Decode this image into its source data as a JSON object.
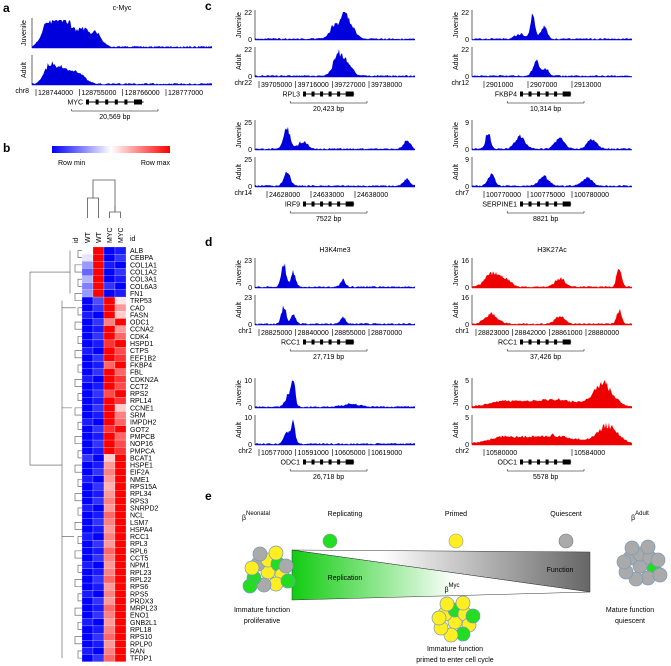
{
  "panel_letters": {
    "a": "a",
    "b": "b",
    "c": "c",
    "d": "d",
    "e": "e"
  },
  "blocks": [
    {
      "title": "c-Myc",
      "color": "#0000dd",
      "rows": [
        {
          "label": "Juvenile"
        },
        {
          "label": "Adult"
        }
      ],
      "chr": "chr8",
      "coords": [
        "128744000",
        "128755000",
        "128766000",
        "128777000"
      ],
      "gene": "MYC",
      "size": "20,569 bp"
    },
    {
      "color": "#0000dd",
      "rows": [
        {
          "label": "Juvenile",
          "max": "22",
          "min": "0"
        },
        {
          "label": "Adult",
          "max": "22",
          "min": "0"
        }
      ],
      "chr": "chr22",
      "coords": [
        "39705000",
        "39716000",
        "39727000",
        "39738000"
      ],
      "gene": "RPL3",
      "size": "20,423 bp"
    },
    {
      "color": "#0000dd",
      "rows": [
        {
          "label": "Juvenile",
          "max": "22",
          "min": "0"
        },
        {
          "label": "Adult",
          "max": "22",
          "min": "0"
        }
      ],
      "chr": "chr12",
      "coords": [
        "2901000",
        "2907000",
        "2913000"
      ],
      "gene": "FKBP4",
      "size": "10,314 bp"
    },
    {
      "color": "#0000dd",
      "rows": [
        {
          "label": "Juvenile",
          "max": "25",
          "min": "0"
        },
        {
          "label": "Adult",
          "max": "25",
          "min": "0"
        }
      ],
      "chr": "chr14",
      "coords": [
        "24628000",
        "24633000",
        "24638000"
      ],
      "gene": "IRF9",
      "size": "7522 bp"
    },
    {
      "color": "#0000dd",
      "rows": [
        {
          "label": "Juvenile",
          "max": "9",
          "min": "0"
        },
        {
          "label": "Adult",
          "max": "9",
          "min": "0"
        }
      ],
      "chr": "chr7",
      "coords": [
        "100770000",
        "100775000",
        "100780000"
      ],
      "gene": "SERPINE1",
      "size": "8821 bp"
    },
    {
      "title": "H3K4me3",
      "color": "#0000dd",
      "rows": [
        {
          "label": "Juvenile",
          "max": "23",
          "min": "0"
        },
        {
          "label": "Adult",
          "max": "23",
          "min": "0"
        }
      ],
      "chr": "chr1",
      "coords": [
        "28825000",
        "28840000",
        "28855000",
        "28870000"
      ],
      "gene": "RCC1",
      "size": "27,719 bp"
    },
    {
      "title": "H3K27Ac",
      "color": "#ee0000",
      "rows": [
        {
          "label": "Juvenile",
          "max": "16",
          "min": "0"
        },
        {
          "label": "Adult",
          "max": "16",
          "min": "0"
        }
      ],
      "chr": "chr1",
      "coords": [
        "28823000",
        "28842000",
        "28861000",
        "28880000"
      ],
      "gene": "RCC1",
      "size": "37,426 bp"
    },
    {
      "color": "#0000dd",
      "rows": [
        {
          "label": "Juvenile",
          "max": "10",
          "min": "0"
        },
        {
          "label": "Adult",
          "max": "10",
          "min": "0"
        }
      ],
      "chr": "chr2",
      "coords": [
        "10577000",
        "10591000",
        "10605000",
        "10619000"
      ],
      "gene": "ODC1",
      "size": "26,718 bp"
    },
    {
      "color": "#ee0000",
      "rows": [
        {
          "label": "Juvenile",
          "max": "5",
          "min": "0"
        },
        {
          "label": "Adult",
          "max": "5",
          "min": "0"
        }
      ],
      "chr": "chr2",
      "coords": [
        "10580000",
        "10584000"
      ],
      "gene": "ODC1",
      "size": "5578 bp"
    }
  ],
  "heatmap": {
    "legend_min": "Row min",
    "legend_max": "Row max",
    "low_color": "#0000ff",
    "mid_color": "#ffffff",
    "high_color": "#ff0000",
    "id_left": "id",
    "id_right": "id",
    "columns": [
      "WT",
      "WT",
      "MYC",
      "MYC"
    ],
    "genes": [
      {
        "name": "ALB",
        "color": "#000000",
        "values": [
          0.5,
          1,
          0,
          0.05
        ]
      },
      {
        "name": "CEBPA",
        "color": "#000000",
        "values": [
          0.45,
          1,
          0,
          0.1
        ]
      },
      {
        "name": "COL1A1",
        "color": "#000000",
        "values": [
          0.3,
          1,
          0.05,
          0
        ]
      },
      {
        "name": "COL1A2",
        "color": "#cc33cc",
        "values": [
          0.2,
          1,
          0,
          0.1
        ]
      },
      {
        "name": "COL3A1",
        "color": "#cc33cc",
        "values": [
          0.35,
          1,
          0,
          0.05
        ]
      },
      {
        "name": "COL6A3",
        "color": "#000000",
        "values": [
          0.25,
          1,
          0.1,
          0
        ]
      },
      {
        "name": "FN1",
        "color": "#000000",
        "values": [
          0.3,
          1,
          0,
          0.05
        ]
      },
      {
        "name": "TRP53",
        "color": "#cc33cc",
        "values": [
          0,
          0.15,
          1,
          0.55
        ]
      },
      {
        "name": "CAD",
        "color": "#000000",
        "values": [
          0,
          0.1,
          1,
          0.7
        ]
      },
      {
        "name": "FASN",
        "color": "#000000",
        "values": [
          0.05,
          0,
          1,
          0.6
        ]
      },
      {
        "name": "ODC1",
        "color": "#cc33cc",
        "values": [
          0,
          0.1,
          0.75,
          1
        ]
      },
      {
        "name": "CCNA2",
        "color": "#cc33cc",
        "values": [
          0,
          0.05,
          1,
          0.7
        ]
      },
      {
        "name": "CDK4",
        "color": "#000000",
        "values": [
          0,
          0.1,
          1,
          0.8
        ]
      },
      {
        "name": "HSPD1",
        "color": "#000000",
        "values": [
          0,
          0.05,
          0.9,
          1
        ]
      },
      {
        "name": "CTPS",
        "color": "#000000",
        "values": [
          0.05,
          0,
          1,
          0.85
        ]
      },
      {
        "name": "EEF1B2",
        "color": "#000000",
        "values": [
          0,
          0.1,
          1,
          0.9
        ]
      },
      {
        "name": "FKBP4",
        "color": "#cc33cc",
        "values": [
          0,
          0.05,
          0.8,
          1
        ]
      },
      {
        "name": "FBL",
        "color": "#000000",
        "values": [
          0,
          0.1,
          1,
          0.8
        ]
      },
      {
        "name": "CDKN2A",
        "color": "#000000",
        "values": [
          0.05,
          0,
          1,
          0.9
        ]
      },
      {
        "name": "CCT2",
        "color": "#000000",
        "values": [
          0,
          0.05,
          1,
          0.85
        ]
      },
      {
        "name": "RPS2",
        "color": "#cc33cc",
        "values": [
          0,
          0.1,
          0.85,
          1
        ]
      },
      {
        "name": "RPL14",
        "color": "#000000",
        "values": [
          0,
          0.05,
          1,
          0.9
        ]
      },
      {
        "name": "CCNE1",
        "color": "#cc33cc",
        "values": [
          0,
          0.1,
          1,
          0.6
        ]
      },
      {
        "name": "SRM",
        "color": "#000000",
        "values": [
          0,
          0.05,
          1,
          0.75
        ]
      },
      {
        "name": "IMPDH2",
        "color": "#000000",
        "values": [
          0.05,
          0,
          1,
          0.8
        ]
      },
      {
        "name": "GOT2",
        "color": "#000000",
        "values": [
          0,
          0.1,
          0.9,
          1
        ]
      },
      {
        "name": "PMPCB",
        "color": "#cc33cc",
        "values": [
          0,
          0.05,
          1,
          0.8
        ]
      },
      {
        "name": "NOP16",
        "color": "#000000",
        "values": [
          0,
          0.1,
          1,
          0.85
        ]
      },
      {
        "name": "PMPCA",
        "color": "#cc33cc",
        "values": [
          0,
          0.05,
          1,
          0.9
        ]
      },
      {
        "name": "BCAT1",
        "color": "#000000",
        "values": [
          0.1,
          0,
          0.6,
          1
        ]
      },
      {
        "name": "HSPE1",
        "color": "#cc33cc",
        "values": [
          0,
          0.05,
          0.7,
          1
        ]
      },
      {
        "name": "EIF2A",
        "color": "#cc33cc",
        "values": [
          0,
          0.1,
          0.75,
          1
        ]
      },
      {
        "name": "NME1",
        "color": "#cc33cc",
        "values": [
          0.05,
          0,
          0.7,
          1
        ]
      },
      {
        "name": "RPS15A",
        "color": "#cc33cc",
        "values": [
          0,
          0.1,
          0.65,
          1
        ]
      },
      {
        "name": "RPL34",
        "color": "#cc33cc",
        "values": [
          0,
          0.05,
          0.7,
          1
        ]
      },
      {
        "name": "RPS3",
        "color": "#cc33cc",
        "values": [
          0,
          0.1,
          0.75,
          1
        ]
      },
      {
        "name": "SNRPD2",
        "color": "#cc33cc",
        "values": [
          0.05,
          0,
          0.7,
          1
        ]
      },
      {
        "name": "NCL",
        "color": "#000000",
        "values": [
          0,
          0.05,
          0.8,
          1
        ]
      },
      {
        "name": "LSM7",
        "color": "#cc33cc",
        "values": [
          0,
          0.1,
          0.75,
          1
        ]
      },
      {
        "name": "HSPA4",
        "color": "#cc33cc",
        "values": [
          0,
          0.05,
          0.7,
          1
        ]
      },
      {
        "name": "RCC1",
        "color": "#cc33cc",
        "values": [
          0.05,
          0,
          0.75,
          1
        ]
      },
      {
        "name": "RPL3",
        "color": "#cc33cc",
        "values": [
          0,
          0.1,
          0.7,
          1
        ]
      },
      {
        "name": "RPL6",
        "color": "#cc33cc",
        "values": [
          0,
          0.05,
          0.8,
          1
        ]
      },
      {
        "name": "CCT5",
        "color": "#000000",
        "values": [
          0,
          0.1,
          0.75,
          1
        ]
      },
      {
        "name": "NPM1",
        "color": "#cc33cc",
        "values": [
          0.05,
          0,
          0.7,
          1
        ]
      },
      {
        "name": "RPL23",
        "color": "#cc33cc",
        "values": [
          0,
          0.05,
          0.75,
          1
        ]
      },
      {
        "name": "RPL22",
        "color": "#000000",
        "values": [
          0,
          0.1,
          0.8,
          1
        ]
      },
      {
        "name": "RPS6",
        "color": "#cc33cc",
        "values": [
          0,
          0.05,
          0.7,
          1
        ]
      },
      {
        "name": "RPS5",
        "color": "#cc33cc",
        "values": [
          0.05,
          0,
          0.75,
          1
        ]
      },
      {
        "name": "PRDX3",
        "color": "#000000",
        "values": [
          0,
          0.1,
          0.7,
          1
        ]
      },
      {
        "name": "MRPL23",
        "color": "#000000",
        "values": [
          0,
          0.05,
          0.8,
          1
        ]
      },
      {
        "name": "ENO1",
        "color": "#000000",
        "values": [
          0,
          0.1,
          0.75,
          1
        ]
      },
      {
        "name": "GNB2L1",
        "color": "#000000",
        "values": [
          0.05,
          0,
          0.7,
          1
        ]
      },
      {
        "name": "RPL18",
        "color": "#000000",
        "values": [
          0,
          0.05,
          0.75,
          1
        ]
      },
      {
        "name": "RPS10",
        "color": "#cc33cc",
        "values": [
          0,
          0.1,
          0.8,
          1
        ]
      },
      {
        "name": "RPLP0",
        "color": "#cc33cc",
        "values": [
          0,
          0.05,
          0.7,
          1
        ]
      },
      {
        "name": "RAN",
        "color": "#000000",
        "values": [
          0.05,
          0,
          0.75,
          1
        ]
      },
      {
        "name": "TFDP1",
        "color": "#000000",
        "values": [
          0,
          0.1,
          0.8,
          1
        ]
      }
    ]
  },
  "diagram": {
    "replicating": "Replicating",
    "primed": "Primed",
    "quiescent": "Quiescent",
    "replication": "Replication",
    "function": "Function",
    "neonatal": {
      "symbol": "β",
      "sup": "Neonatal",
      "lines": [
        "Immature function",
        "proliferative"
      ]
    },
    "adult": {
      "symbol": "β",
      "sup": "Adult",
      "lines": [
        "Mature function",
        "quiescent"
      ]
    },
    "myc": {
      "symbol": "β",
      "sup": "Myc",
      "lines": [
        "Immature function",
        "primed to enter cell cycle"
      ]
    }
  }
}
